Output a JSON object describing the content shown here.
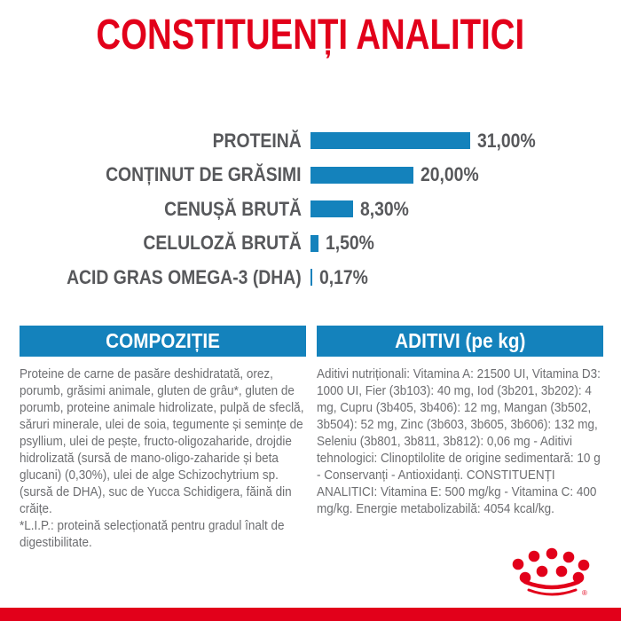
{
  "page": {
    "background": "#ffffff",
    "accent_red": "#e2001a",
    "accent_blue": "#1482bc",
    "label_gray": "#57585b",
    "body_gray": "#6d6e71"
  },
  "title": "CONSTITUENȚI ANALITICI",
  "chart_data": {
    "type": "bar",
    "orientation": "horizontal",
    "title": "CONSTITUENȚI ANALITICI",
    "categories": [
      "PROTEINĂ",
      "CONȚINUT DE GRĂSIMI",
      "CENUȘĂ BRUTĂ",
      "CELULOZĂ BRUTĂ",
      "ACID GRAS OMEGA-3 (DHA)"
    ],
    "values": [
      31.0,
      20.0,
      8.3,
      1.5,
      0.17
    ],
    "value_labels": [
      "31,00%",
      "20,00%",
      "8,30%",
      "1,50%",
      "0,17%"
    ],
    "unit": "%",
    "xlim": [
      0,
      31
    ],
    "grid": false,
    "legend": false,
    "bar_color": "#1482bc"
  },
  "sections": {
    "composition": {
      "header": "COMPOZIȚIE",
      "body": "Proteine de carne de pasăre deshidratată, orez, porumb, grăsimi animale, gluten de grâu*, gluten de porumb, proteine animale hidrolizate, pulpă de sfeclă, săruri minerale, ulei de soia, tegumente și semințe de psyllium, ulei de pește, fructo-oligozaharide, drojdie hidrolizată (sursă de mano-oligo-zaharide și beta glucani) (0,30%), ulei de alge Schizochytrium sp. (sursă de DHA), suc de Yucca Schidigera, făină din crăițe.",
      "footnote": "*L.I.P.: proteină selecționată pentru gradul înalt de digestibilitate."
    },
    "additives": {
      "header": "ADITIVI (pe kg)",
      "body": "Aditivi nutriționali: Vitamina A: 21500 UI, Vitamina D3: 1000 UI, Fier (3b103): 40 mg, Iod (3b201, 3b202): 4 mg, Cupru (3b405, 3b406): 12 mg, Mangan (3b502, 3b504): 52 mg, Zinc (3b603, 3b605, 3b606): 132 mg, Seleniu (3b801, 3b811, 3b812): 0,06 mg - Aditivi tehnologici: Clinoptilolite de origine sedimentară: 10 g - Conservanți - Antioxidanți. CONSTITUENȚI ANALITICI: Vitamina E: 500 mg/kg - Vitamina C: 400 mg/kg. Energie metabolizabilă: 4054 kcal/kg."
    }
  },
  "logo": {
    "name": "royal-canin-crown",
    "color": "#e2001a",
    "registered_mark": "®"
  }
}
